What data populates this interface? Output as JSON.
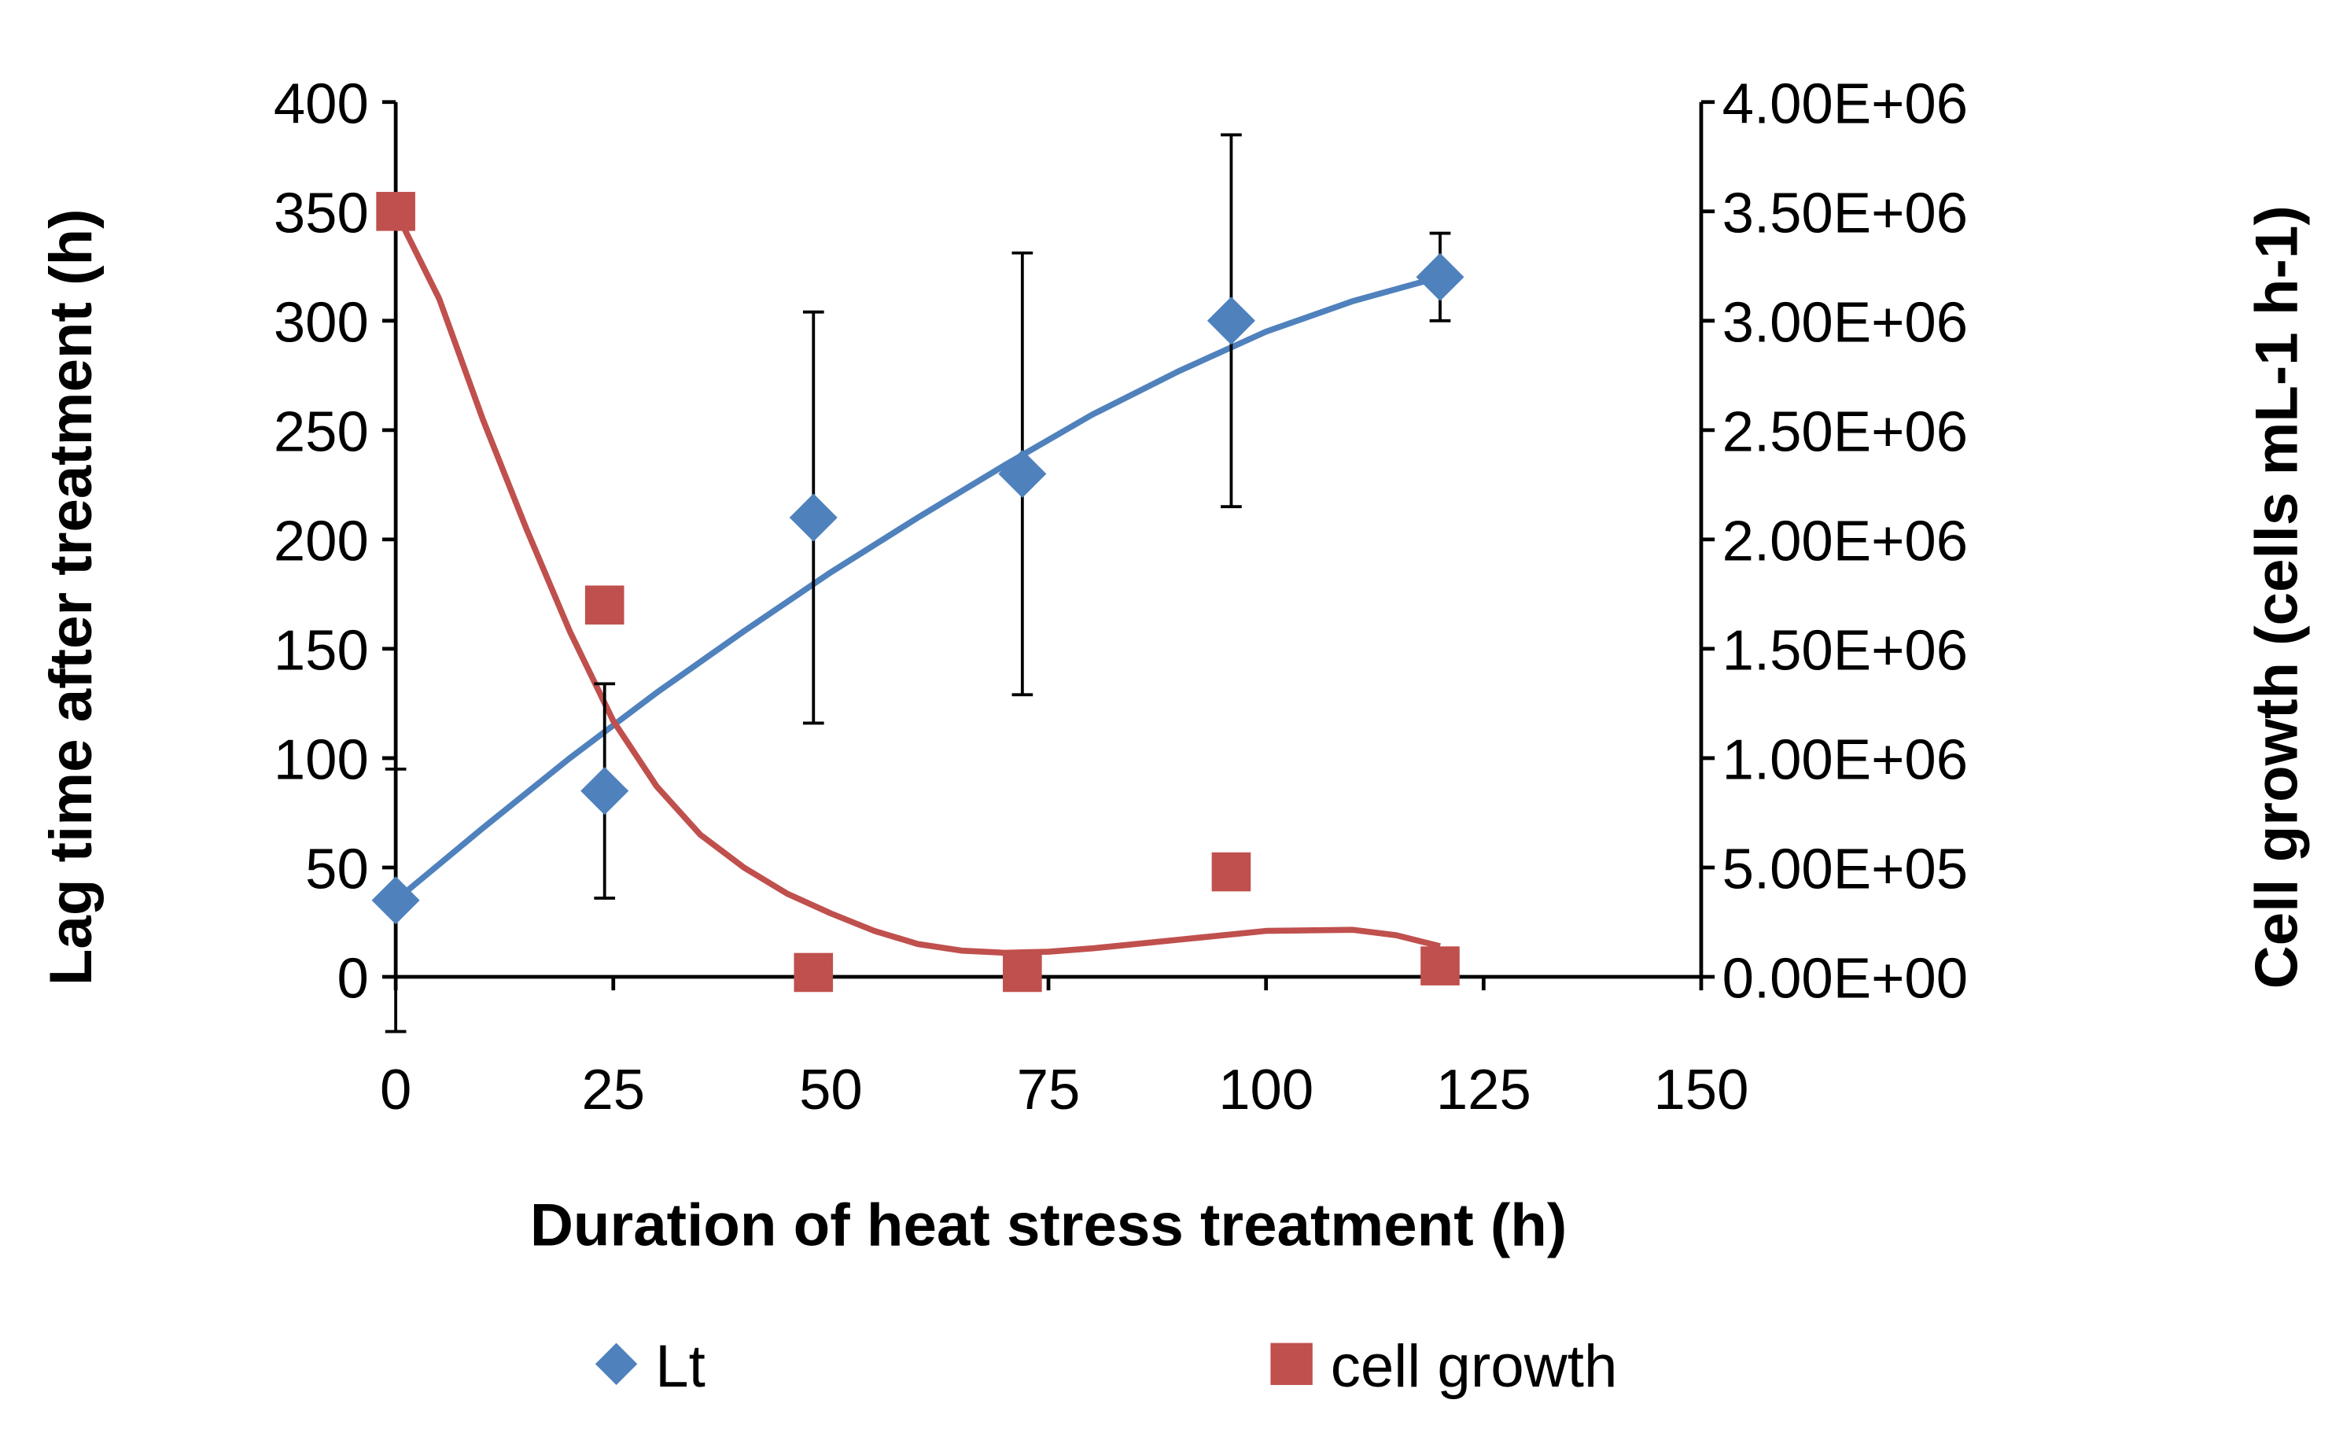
{
  "chart_data": {
    "type": "scatter",
    "title": "",
    "xlabel": "Duration of heat stress treatment (h)",
    "ylabel": "Lag time after treatment (h)",
    "y2label": "Cell growth (cells mL-1 h-1)",
    "xlim": [
      0,
      150
    ],
    "ylim": [
      0,
      400
    ],
    "y2lim": [
      0,
      4000000
    ],
    "x_ticks": [
      "0",
      "25",
      "50",
      "75",
      "100",
      "125",
      "150"
    ],
    "x_tick_values": [
      0,
      25,
      50,
      75,
      100,
      125,
      150
    ],
    "y_ticks": [
      "0",
      "50",
      "100",
      "150",
      "200",
      "250",
      "300",
      "350",
      "400"
    ],
    "y_tick_values": [
      0,
      50,
      100,
      150,
      200,
      250,
      300,
      350,
      400
    ],
    "y2_ticks": [
      "0.00E+00",
      "5.00E+05",
      "1.00E+06",
      "1.50E+06",
      "2.00E+06",
      "2.50E+06",
      "3.00E+06",
      "3.50E+06",
      "4.00E+06"
    ],
    "y2_tick_values": [
      0,
      500000,
      1000000,
      1500000,
      2000000,
      2500000,
      3000000,
      3500000,
      4000000
    ],
    "grid": false,
    "legend_position": "bottom",
    "series": [
      {
        "name": "Lt",
        "axis": "left",
        "color": "#4f81bd",
        "marker": "diamond",
        "x": [
          0,
          24,
          48,
          72,
          96,
          120
        ],
        "y": [
          35,
          85,
          210,
          230,
          300,
          320
        ],
        "error": [
          60,
          49,
          94,
          101,
          85,
          20
        ],
        "trend_x": [
          0,
          10,
          20,
          30,
          40,
          50,
          60,
          70,
          80,
          90,
          100,
          110,
          120
        ],
        "trend_y": [
          35,
          68,
          100,
          130,
          158,
          185,
          210,
          234,
          257,
          277,
          295,
          309,
          320
        ]
      },
      {
        "name": "cell growth",
        "axis": "right",
        "color": "#c0504d",
        "marker": "square",
        "x": [
          0,
          24,
          48,
          72,
          96,
          120
        ],
        "y": [
          3500000,
          1700000,
          20000,
          20000,
          480000,
          50000
        ],
        "trend_x": [
          0,
          5,
          10,
          15,
          20,
          25,
          30,
          35,
          40,
          45,
          50,
          55,
          60,
          65,
          70,
          75,
          80,
          90,
          100,
          110,
          115,
          120
        ],
        "trend_y": [
          3500000,
          3100000,
          2550000,
          2050000,
          1580000,
          1170000,
          870000,
          650000,
          500000,
          380000,
          290000,
          210000,
          150000,
          120000,
          110000,
          115000,
          130000,
          170000,
          210000,
          215000,
          190000,
          140000
        ]
      }
    ]
  }
}
